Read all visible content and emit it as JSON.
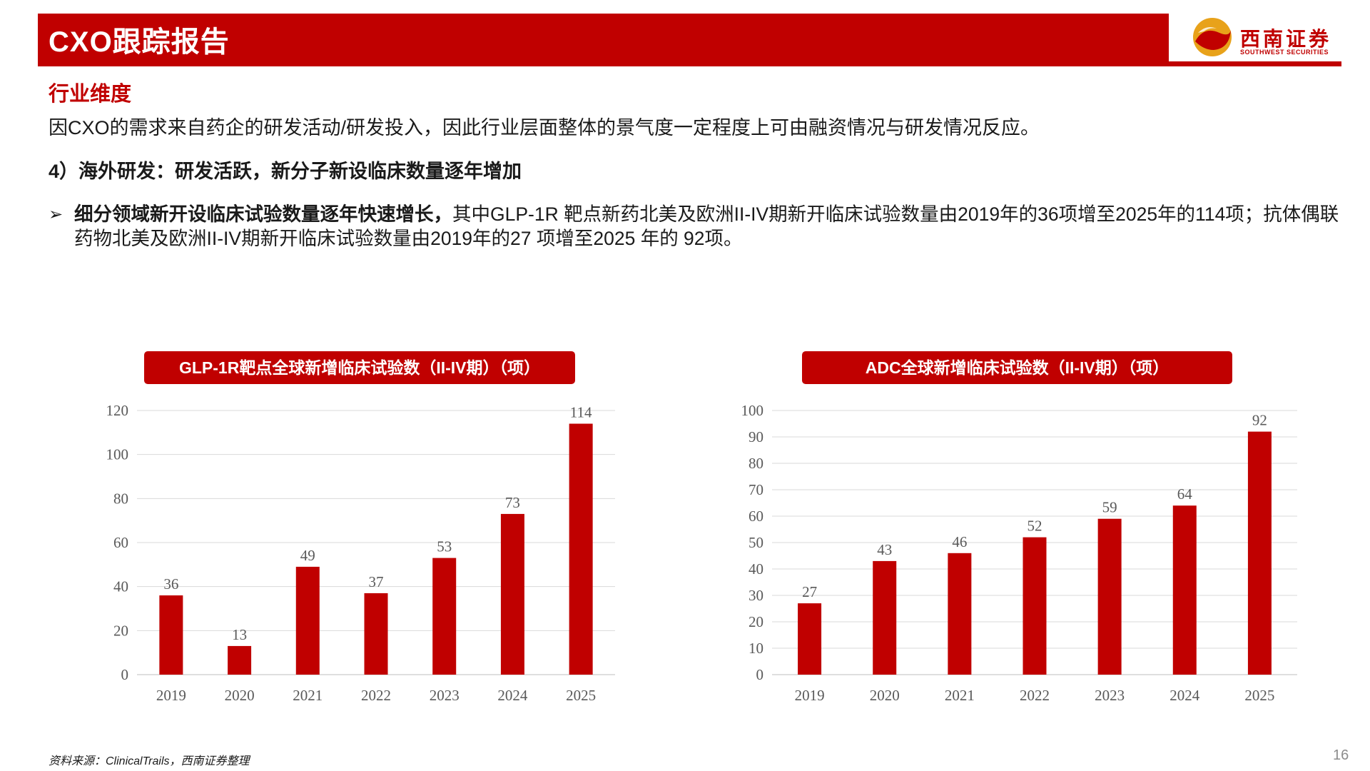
{
  "header": {
    "title": "CXO跟踪报告"
  },
  "logo": {
    "name_cn": "西南证券",
    "name_en": "SOUTHWEST SECURITIES",
    "icon": "sun-swirl-logo-icon"
  },
  "section": {
    "title": "行业维度"
  },
  "intro": "因CXO的需求来自药企的研发活动/研发投入，因此行业层面整体的景气度一定程度上可由融资情况与研发情况反应。",
  "subtitle": "4）海外研发：研发活跃，新分子新设临床数量逐年增加",
  "bullet": {
    "icon": "arrow-bullet-icon",
    "glyph": "➢",
    "bold": "细分领域新开设临床试验数量逐年快速增长，",
    "text": "其中GLP-1R 靶点新药北美及欧洲II-IV期新开临床试验数量由2019年的36项增至2025年的114项；抗体偶联药物北美及欧洲II-IV期新开临床试验数量由2019年的27 项增至2025 年的 92项。"
  },
  "colors": {
    "accent": "#c00000",
    "grid": "#d9d9d9",
    "axis_text": "#595959"
  },
  "chart_data": [
    {
      "type": "bar",
      "title": "GLP-1R靶点全球新增临床试验数（II-IV期）（项）",
      "categories": [
        "2019",
        "2020",
        "2021",
        "2022",
        "2023",
        "2024",
        "2025"
      ],
      "values": [
        36,
        13,
        49,
        37,
        53,
        73,
        114
      ],
      "ylim": [
        0,
        120
      ],
      "yticks": [
        0,
        20,
        40,
        60,
        80,
        100,
        120
      ],
      "grid": true,
      "data_labels": true,
      "xlabel": "",
      "ylabel": ""
    },
    {
      "type": "bar",
      "title": "ADC全球新增临床试验数（II-IV期）（项）",
      "categories": [
        "2019",
        "2020",
        "2021",
        "2022",
        "2023",
        "2024",
        "2025"
      ],
      "values": [
        27,
        43,
        46,
        52,
        59,
        64,
        92
      ],
      "ylim": [
        0,
        100
      ],
      "yticks": [
        0,
        10,
        20,
        30,
        40,
        50,
        60,
        70,
        80,
        90,
        100
      ],
      "grid": true,
      "data_labels": true,
      "xlabel": "",
      "ylabel": ""
    }
  ],
  "footer": {
    "source": "资料来源：ClinicalTrails，西南证券整理",
    "page": "16"
  }
}
